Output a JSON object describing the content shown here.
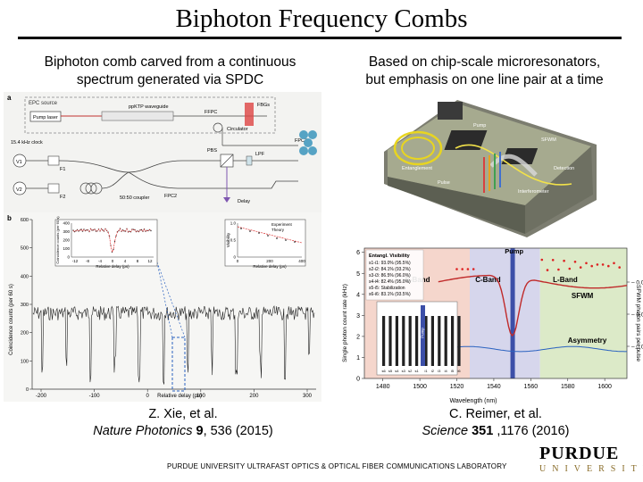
{
  "slide": {
    "title": "Biphoton Frequency Combs"
  },
  "left": {
    "heading_line1": "Biphoton comb carved from a continuous",
    "heading_line2": "spectrum generated via SPDC",
    "cite_line1": "Z. Xie, et al.",
    "cite_journal": "Nature Photonics",
    "cite_volume": "9",
    "cite_rest": ", 536 (2015)",
    "fig_a": {
      "panel": "a",
      "labels": [
        "EPC source",
        "Pump laser",
        "ppKTP waveguide",
        "FBGs",
        "FFPC",
        "Circulator",
        "FPC3",
        "15.4 kHz clock",
        "V1",
        "V2",
        "F1",
        "F2",
        "50:50 coupler",
        "PBS",
        "LPF",
        "FPC2",
        "Delay"
      ]
    },
    "fig_b": {
      "panel": "b",
      "ylabel": "Coincidence counts (per 60 s)",
      "xlabel": "Relative delay (ps)",
      "xticks": [
        "-200",
        "-100",
        "0",
        "100",
        "200",
        "300"
      ],
      "yticks": [
        "0",
        "100",
        "200",
        "300",
        "400",
        "500",
        "600"
      ],
      "inset1": {
        "ylabel": "Coincidence counts (per 60 s)",
        "xlabel": "Relative delay (ps)",
        "xticks": [
          "-12",
          "-8",
          "-4",
          "0",
          "4",
          "8",
          "12"
        ],
        "yticks": [
          "0",
          "100",
          "200",
          "300",
          "400"
        ]
      },
      "inset2": {
        "ylabel": "Visibility",
        "xlabel": "Relative delay (ps)",
        "xticks": [
          "0",
          "200",
          "400"
        ],
        "yticks": [
          "0",
          "0.5",
          "1.0"
        ],
        "legend": [
          "Experiment",
          "Theory"
        ]
      }
    }
  },
  "right": {
    "heading_line1": "Based on chip-scale microresonators,",
    "heading_line2": "but emphasis on one line pair at a time",
    "cite_line1": "C. Reimer, et al.",
    "cite_journal": "Science",
    "cite_volume": "351",
    "cite_rest": " ,1176 (2016)",
    "chart": {
      "ylabel": "Single photon count rate (kHz)",
      "y2label": "SFWM photon pairs per pulse",
      "xlabel": "Wavelength (nm)",
      "xticks": [
        "1480",
        "1500",
        "1520",
        "1540",
        "1560",
        "1580",
        "1600"
      ],
      "yticks": [
        "0",
        "1",
        "2",
        "3",
        "4",
        "5",
        "6"
      ],
      "y2ticks": [
        "0.01",
        "0.02",
        "0.03"
      ],
      "bands": [
        "S-Band",
        "C-Band",
        "L-Band"
      ],
      "pump": "Pump",
      "sfwm": "SFWM",
      "asym": "Asymmetry",
      "legend_title": "Entangl. Visibility",
      "legend_rows": [
        "s1-i1: 93.0% (95.5%)",
        "s2-i2: 84.1% (93.2%)",
        "s3-i3: 86.5% (96.0%)",
        "s4-i4: 82.4% (95.0%)",
        "s5-i5: Stabilization",
        "s6-i6: 83.1% (93.5%)"
      ],
      "inset_labels": [
        "s6",
        "s5",
        "s4",
        "s3",
        "s2",
        "s1",
        "i1",
        "i2",
        "i3",
        "i4",
        "i5",
        "i6"
      ],
      "inset_pump": "Pump"
    },
    "chip": {
      "labels": [
        "Entanglement",
        "Pulse",
        "Pump",
        "Interferometer",
        "SFWM",
        "Detection"
      ]
    }
  },
  "footer": {
    "lab": "PURDUE UNIVERSITY ULTRAFAST OPTICS & OPTICAL FIBER COMMUNICATIONS LABORATORY",
    "logo_main": "PURDUE",
    "logo_sub": "UNIVERSITY"
  }
}
